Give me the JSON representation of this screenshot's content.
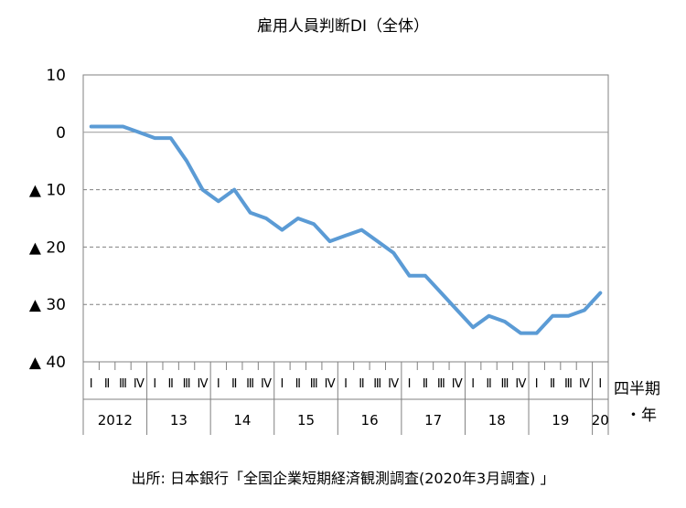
{
  "title": "雇用人員判断DI（全体）",
  "source": "出所: 日本銀行「全国企業短期経済観測調査(2020年3月調査) 」",
  "chart_data": {
    "type": "line",
    "title": "雇用人員判断DI（全体）",
    "xlabel": "四半期・年",
    "ylim": [
      -40,
      10
    ],
    "y_ticks": [
      {
        "value": 10,
        "label": "10"
      },
      {
        "value": 0,
        "label": "0"
      },
      {
        "value": -10,
        "label": "▲ 10"
      },
      {
        "value": -20,
        "label": "▲ 20"
      },
      {
        "value": -30,
        "label": "▲ 30"
      },
      {
        "value": -40,
        "label": "▲ 40"
      }
    ],
    "grid": "horizontal-dashed",
    "axis_label_lines": [
      "四半期",
      "・年"
    ],
    "quarter_labels": [
      "Ⅰ",
      "Ⅱ",
      "Ⅲ",
      "Ⅳ"
    ],
    "years": [
      {
        "label": "2012",
        "quarters": 4
      },
      {
        "label": "13",
        "quarters": 4
      },
      {
        "label": "14",
        "quarters": 4
      },
      {
        "label": "15",
        "quarters": 4
      },
      {
        "label": "16",
        "quarters": 4
      },
      {
        "label": "17",
        "quarters": 4
      },
      {
        "label": "18",
        "quarters": 4
      },
      {
        "label": "19",
        "quarters": 4
      },
      {
        "label": "20",
        "quarters": 1
      }
    ],
    "series": [
      {
        "color": "#5b9bd5",
        "values": [
          1,
          1,
          1,
          0,
          -1,
          -1,
          -5,
          -10,
          -12,
          -10,
          -14,
          -15,
          -17,
          -15,
          -16,
          -19,
          -18,
          -17,
          -19,
          -21,
          -25,
          -25,
          -28,
          -31,
          -34,
          -32,
          -33,
          -35,
          -35,
          -32,
          -32,
          -31,
          -28
        ]
      }
    ]
  }
}
